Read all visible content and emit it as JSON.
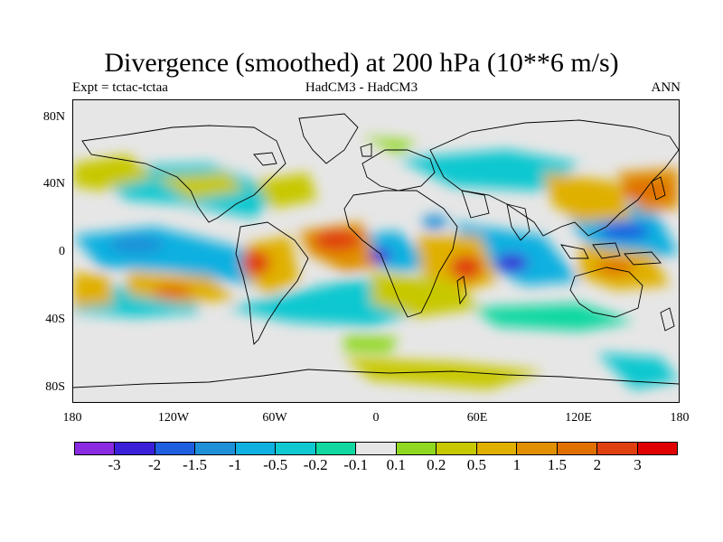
{
  "title": "Divergence (smoothed) at 200 hPa (10**6 m/s)",
  "subtitle_left": "Expt = tctac-tctaa",
  "subtitle_center": "HadCM3 - HadCM3",
  "subtitle_right": "ANN",
  "lat_labels": [
    "80N",
    "40N",
    "0",
    "40S",
    "80S"
  ],
  "lon_labels": [
    "180",
    "120W",
    "60W",
    "0",
    "60E",
    "120E",
    "180"
  ],
  "colorbar": {
    "colors": [
      "#8a2be2",
      "#3a20d8",
      "#1f5fe0",
      "#1e90d8",
      "#10b0e0",
      "#10c8d0",
      "#10d8a0",
      "#e6e6e6",
      "#90d820",
      "#c8c800",
      "#e0b000",
      "#e09000",
      "#e07000",
      "#e04010",
      "#e00000"
    ],
    "labels": [
      "-3",
      "-2",
      "-1.5",
      "-1",
      "-0.5",
      "-0.2",
      "-0.1",
      "0.1",
      "0.2",
      "0.5",
      "1",
      "1.5",
      "2",
      "3"
    ]
  },
  "map": {
    "background_color": "#e6e6e6",
    "coast_color": "#000000"
  }
}
